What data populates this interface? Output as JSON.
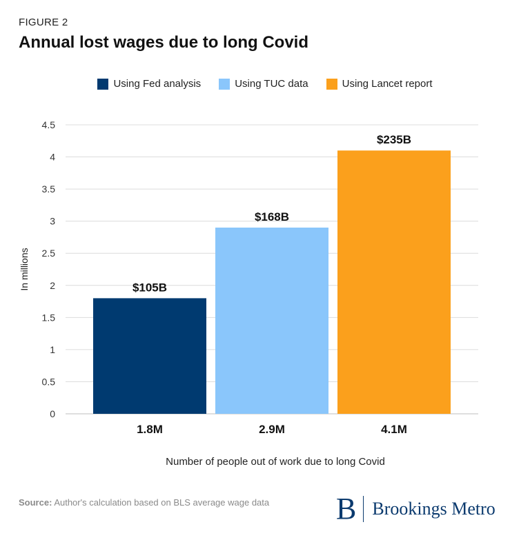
{
  "figure_label": "FIGURE 2",
  "chart_data": {
    "type": "bar",
    "title": "Annual lost wages due to long Covid",
    "categories": [
      "1.8M",
      "2.9M",
      "4.1M"
    ],
    "values": [
      1.8,
      2.9,
      4.1
    ],
    "data_labels": [
      "$105B",
      "$168B",
      "$235B"
    ],
    "legend": [
      "Using Fed analysis",
      "Using TUC data",
      "Using Lancet report"
    ],
    "colors": [
      "#003a70",
      "#8ac6fb",
      "#fba01c"
    ],
    "xlabel": "Number of people out of work due to long Covid",
    "ylabel": "In millions",
    "ylim": [
      0,
      4.5
    ],
    "yticks": [
      "0",
      "0.5",
      "1",
      "1.5",
      "2",
      "2.5",
      "3",
      "3.5",
      "4",
      "4.5"
    ],
    "grid": true,
    "legend_position": "top-center"
  },
  "source": {
    "label": "Source:",
    "text": "Author's calculation based on BLS average wage data"
  },
  "brand": {
    "mark": "B",
    "name": "Brookings Metro"
  }
}
